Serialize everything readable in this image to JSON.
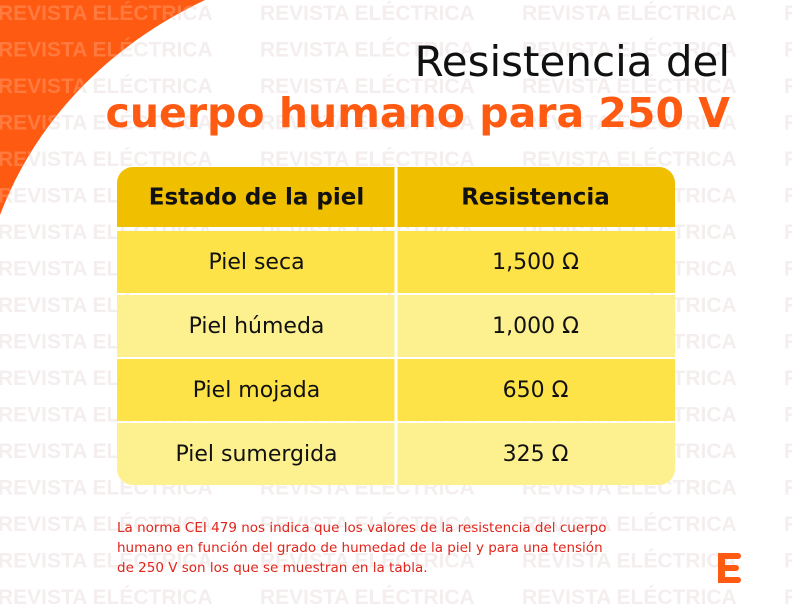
{
  "watermark": "REVISTA ELÉCTRICA",
  "header": {
    "title_line1": "Resistencia del",
    "title_line2": "cuerpo humano para 250 V"
  },
  "table": {
    "columns": [
      "Estado de la piel",
      "Resistencia"
    ],
    "rows": [
      [
        "Piel seca",
        "1,500 Ω"
      ],
      [
        "Piel húmeda",
        "1,000 Ω"
      ],
      [
        "Piel mojada",
        "650 Ω"
      ],
      [
        "Piel sumergida",
        "325 Ω"
      ]
    ]
  },
  "footnote": [
    "La norma CEI 479 nos indica que los valores de la resistencia del cuerpo",
    "humano en función del grado de humedad de la piel y para una tensión",
    "de 250 V son los que se muestran en la tabla."
  ]
}
